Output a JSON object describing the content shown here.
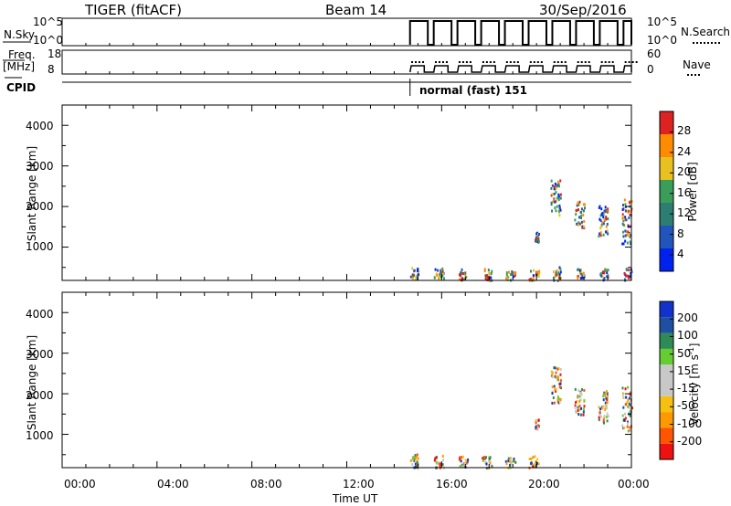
{
  "header": {
    "radar": "TIGER (fitACF)",
    "beam": "Beam 14",
    "date": "30/Sep/2016"
  },
  "params": {
    "nsky_label": "N.Sky",
    "nsky_ticks": [
      "10^5",
      "10^0"
    ],
    "nsearch_label": "N.Search",
    "nsearch_ticks": [
      "10^5",
      "10^0"
    ],
    "freq_label_line1": "Freq.",
    "freq_label_line2": "[MHz]",
    "freq_ticks": [
      "18",
      "8"
    ],
    "nave_label": "Nave",
    "nave_ticks": [
      "60",
      "0"
    ],
    "cpid_label": "CPID",
    "cpid_value": "normal (fast) 151"
  },
  "chart_data": [
    {
      "type": "heatmap",
      "name": "power",
      "ylabel": "Slant Range [km]",
      "yticks": [
        "1000",
        "2000",
        "3000",
        "4000"
      ],
      "ylim": [
        180,
        4500
      ],
      "colorbar_label": "Power [dB]",
      "colorbar_ticks": [
        "28",
        "24",
        "20",
        "16",
        "12",
        "8",
        "4"
      ],
      "colors": [
        "#0022ee",
        "#2255bb",
        "#2e7d73",
        "#3a9e5a",
        "#e8c020",
        "#ff8c00",
        "#dd2222"
      ],
      "data_window": [
        "14:40",
        "24:00"
      ],
      "echo_regions": [
        {
          "time": "14:40-15:00",
          "range": "200-550"
        },
        {
          "time": "15:40-16:05",
          "range": "200-500"
        },
        {
          "time": "16:40-17:05",
          "range": "200-480"
        },
        {
          "time": "17:40-18:05",
          "range": "200-500"
        },
        {
          "time": "18:40-19:05",
          "range": "200-450"
        },
        {
          "time": "19:40-20:05",
          "range": "200-500"
        },
        {
          "time": "19:55-20:05",
          "range": "1150-1400"
        },
        {
          "time": "20:35-21:00",
          "range": "1800-2700"
        },
        {
          "time": "21:35-22:00",
          "range": "1500-2150"
        },
        {
          "time": "22:35-23:00",
          "range": "1300-2100"
        },
        {
          "time": "23:35-24:00",
          "range": "1100-2200"
        },
        {
          "time": "20:40-21:00",
          "range": "200-550"
        },
        {
          "time": "21:40-22:00",
          "range": "200-500"
        },
        {
          "time": "22:40-23:00",
          "range": "200-500"
        },
        {
          "time": "23:40-24:00",
          "range": "200-500"
        }
      ]
    },
    {
      "type": "heatmap",
      "name": "velocity",
      "ylabel": "Slant Range [km]",
      "yticks": [
        "1000",
        "2000",
        "3000",
        "4000"
      ],
      "ylim": [
        180,
        4500
      ],
      "colorbar_label": "Velocity [m s",
      "colorbar_label_sup": "-1",
      "colorbar_label_end": "]",
      "colorbar_ticks": [
        "200",
        "100",
        "50",
        "15",
        "-15",
        "-50",
        "-100",
        "-200"
      ],
      "colors": [
        "#ee1111",
        "#ff5500",
        "#ff9900",
        "#f5c010",
        "#c8c8c8",
        "#c8c8c8",
        "#66cc33",
        "#2e8b57",
        "#1f4fa0",
        "#1133cc"
      ],
      "data_window": [
        "14:40",
        "24:00"
      ],
      "echo_regions": [
        {
          "time": "14:40-15:00",
          "range": "200-550"
        },
        {
          "time": "15:40-16:05",
          "range": "200-500"
        },
        {
          "time": "16:40-17:05",
          "range": "200-480"
        },
        {
          "time": "17:40-18:05",
          "range": "200-500"
        },
        {
          "time": "18:40-19:05",
          "range": "200-450"
        },
        {
          "time": "19:40-20:05",
          "range": "200-500"
        },
        {
          "time": "19:55-20:05",
          "range": "1150-1400"
        },
        {
          "time": "20:35-21:00",
          "range": "1800-2700"
        },
        {
          "time": "21:35-22:00",
          "range": "1500-2150"
        },
        {
          "time": "22:35-23:00",
          "range": "1300-2100"
        },
        {
          "time": "23:35-24:00",
          "range": "1100-2200"
        }
      ]
    }
  ],
  "x_axis": {
    "label": "Time UT",
    "ticks": [
      "00:00",
      "04:00",
      "08:00",
      "12:00",
      "16:00",
      "20:00",
      "00:00"
    ],
    "range_hours": [
      0,
      24
    ]
  }
}
